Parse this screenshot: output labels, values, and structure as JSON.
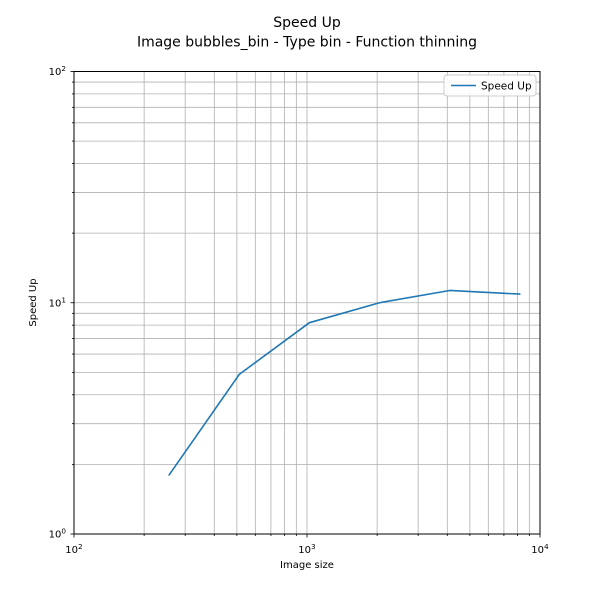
{
  "figure": {
    "title": "Speed Up",
    "subtitle": "Image bubbles_bin - Type bin - Function thinning"
  },
  "chart_data": {
    "type": "line",
    "title": "Speed Up",
    "subtitle": "Image bubbles_bin - Type bin - Function thinning",
    "xlabel": "Image size",
    "ylabel": "Speed Up",
    "xscale": "log",
    "yscale": "log",
    "xlim": [
      100,
      10000
    ],
    "ylim": [
      1,
      100
    ],
    "x_axis": {
      "min_exp": 2,
      "max_exp": 4,
      "tick_labels": [
        "10^2",
        "10^3",
        "10^4"
      ]
    },
    "y_axis": {
      "min_exp": 0,
      "max_exp": 2,
      "tick_labels": [
        "10^0",
        "10^1",
        "10^2"
      ]
    },
    "x": [
      256,
      512,
      1024,
      2048,
      4096,
      8192
    ],
    "series": [
      {
        "name": "Speed Up",
        "color": "#1f77b4",
        "values": [
          1.8,
          4.9,
          8.2,
          10.0,
          11.3,
          10.9
        ]
      }
    ],
    "grid": "both",
    "grid_color": "#b0b0b0",
    "spine_color": "#000000",
    "background": "#ffffff",
    "legend": {
      "position": "upper right",
      "label": "Speed Up",
      "border_color": "#cccccc",
      "fill": "#ffffff"
    }
  }
}
